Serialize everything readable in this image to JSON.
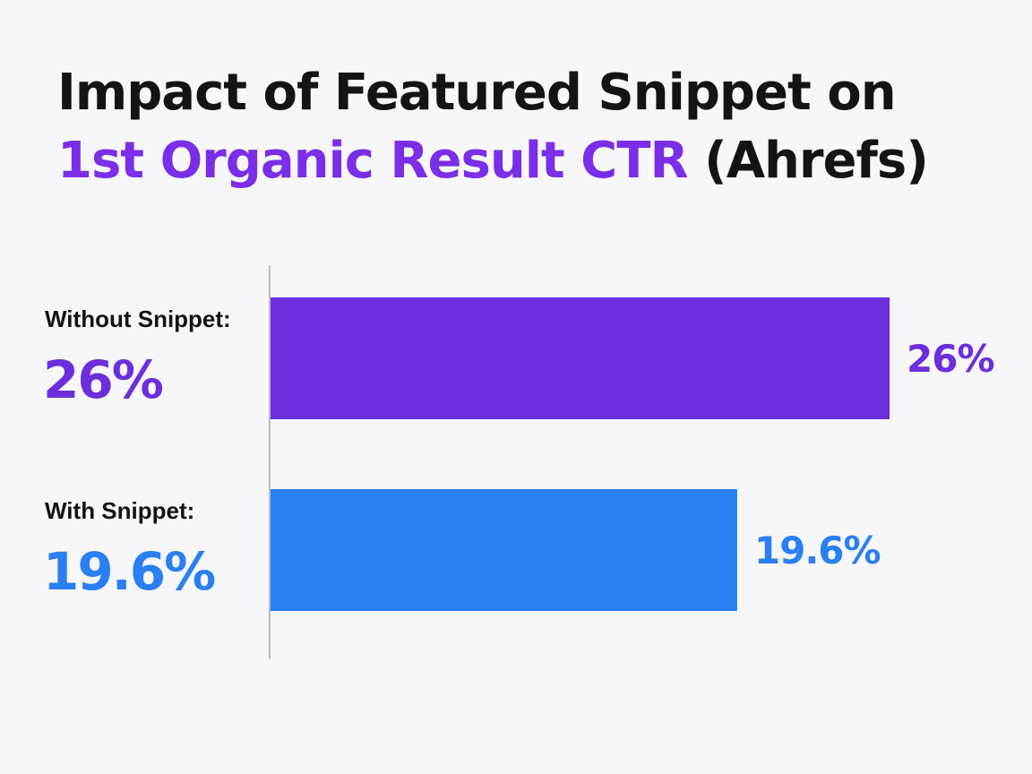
{
  "chart_data": {
    "type": "bar",
    "orientation": "horizontal",
    "title": {
      "line1": "Impact of Featured Snippet on",
      "line2_accent": "1st Organic Result CTR",
      "line2_rest": "(Ahrefs)"
    },
    "categories": [
      "Without Snippet:",
      "With Snippet:"
    ],
    "category_values": [
      "26%",
      "19.6%"
    ],
    "values": [
      26,
      19.6
    ],
    "data_labels": [
      "26%",
      "19.6%"
    ],
    "colors": [
      "#6c2edc",
      "#2a7ff2"
    ],
    "accent_color": "#7a2ee8",
    "xlim": [
      0,
      26
    ],
    "grid": false,
    "xlabel": "",
    "ylabel": ""
  }
}
